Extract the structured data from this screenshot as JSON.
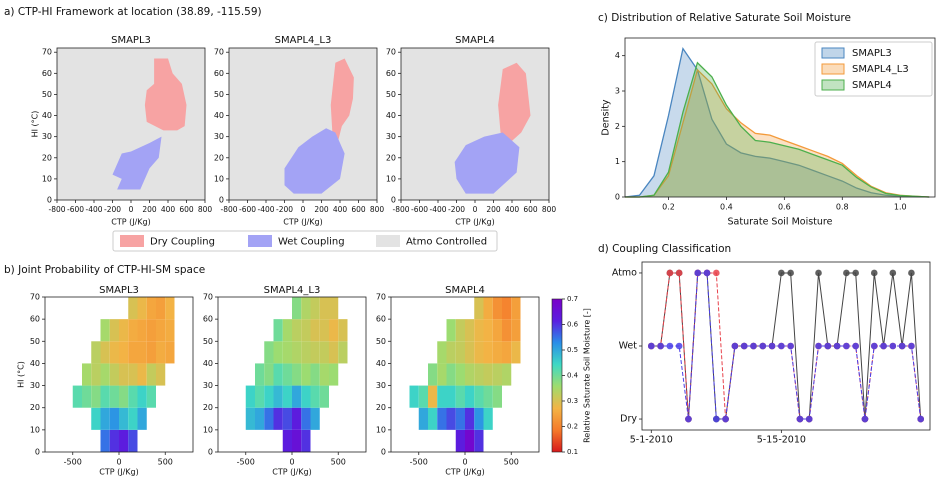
{
  "chart_data": [
    {
      "type": "region",
      "title": "a) CTP-HI Framework at location (38.89, -115.59)",
      "subplot_titles": [
        "SMAPL3",
        "SMAPL4_L3",
        "SMAPL4"
      ],
      "xlabel": "CTP (J/Kg)",
      "ylabel": "HI (°C)",
      "xlim": [
        -800,
        800
      ],
      "xticks": [
        -800,
        -600,
        -400,
        -200,
        0,
        200,
        400,
        600,
        800
      ],
      "ylim": [
        0,
        72
      ],
      "yticks": [
        0,
        10,
        20,
        30,
        40,
        50,
        60,
        70
      ],
      "background": {
        "name": "Atmo Controlled",
        "color": "#e3e3e3"
      },
      "series": [
        {
          "name": "Dry Coupling",
          "color": "#f7a3a3",
          "regions": [
            {
              "x": [
                250,
                400,
                450,
                550,
                600,
                580,
                500,
                350,
                170,
                150,
                170,
                250
              ],
              "values": [
                67,
                67,
                60,
                55,
                45,
                35,
                33,
                33,
                37,
                45,
                52,
                55
              ]
            },
            {
              "x": [
                300,
                350,
                450,
                550,
                540,
                500,
                420,
                380,
                320
              ],
              "values": [
                45,
                65,
                67,
                58,
                48,
                40,
                35,
                28,
                30
              ]
            },
            {
              "x": [
                250,
                300,
                450,
                550,
                600,
                500,
                400,
                280
              ],
              "values": [
                45,
                62,
                65,
                60,
                40,
                32,
                28,
                30
              ]
            }
          ]
        },
        {
          "name": "Wet Coupling",
          "color": "#a3a3f5",
          "regions": [
            {
              "x": [
                -150,
                -100,
                -200,
                -100,
                0,
                200,
                330,
                300,
                200,
                100,
                0
              ],
              "values": [
                5,
                10,
                12,
                22,
                23,
                27,
                30,
                20,
                15,
                5,
                5
              ]
            },
            {
              "x": [
                -200,
                -100,
                200,
                400,
                450,
                350,
                250,
                100,
                -50,
                -200
              ],
              "values": [
                7,
                3,
                3,
                10,
                22,
                32,
                34,
                30,
                25,
                15
              ]
            },
            {
              "x": [
                -200,
                -100,
                200,
                450,
                480,
                300,
                100,
                -100,
                -220
              ],
              "values": [
                10,
                3,
                3,
                13,
                25,
                32,
                30,
                26,
                18
              ]
            }
          ]
        }
      ]
    },
    {
      "type": "heatmap",
      "title": "b) Joint Probability of CTP-HI-SM space",
      "subplot_titles": [
        "SMAPL3",
        "SMAPL4_L3",
        "SMAPL4"
      ],
      "xlabel": "CTP (J/Kg)",
      "ylabel": "HI (°C)",
      "xlim": [
        -800,
        800
      ],
      "xticks": [
        -500,
        0,
        500
      ],
      "ylim": [
        0,
        70
      ],
      "yticks": [
        0,
        10,
        20,
        30,
        40,
        50,
        60,
        70
      ],
      "xbins": [
        -700,
        -600,
        -500,
        -400,
        -300,
        -200,
        -100,
        0,
        100,
        200,
        300,
        400,
        500,
        600,
        700
      ],
      "ybins": [
        0,
        10,
        20,
        30,
        40,
        50,
        60,
        70
      ],
      "colormap": [
        "#d7191c",
        "#f57a2a",
        "#f3b445",
        "#9fdc6e",
        "#3fd9c4",
        "#2a8ee8",
        "#5a1ee0",
        "#7a00c8"
      ],
      "clim": [
        0.1,
        0.7
      ],
      "cticks": [
        0.1,
        0.2,
        0.3,
        0.4,
        0.5,
        0.6,
        0.7
      ],
      "colorbar_label": "Relative Saturate Soil Moisture [-]",
      "subplots": [
        {
          "values": [
            [
              null,
              null,
              null,
              null,
              null,
              0.55,
              0.6,
              0.62,
              0.58,
              null,
              null,
              null,
              null,
              null
            ],
            [
              null,
              null,
              null,
              null,
              0.45,
              0.5,
              0.52,
              0.48,
              0.45,
              0.5,
              null,
              null,
              null,
              null
            ],
            [
              null,
              null,
              0.42,
              0.4,
              0.38,
              0.42,
              0.4,
              0.38,
              0.42,
              0.45,
              0.42,
              null,
              null,
              null
            ],
            [
              null,
              null,
              null,
              0.35,
              0.33,
              0.35,
              0.32,
              0.3,
              0.3,
              0.28,
              0.32,
              0.3,
              null,
              null
            ],
            [
              null,
              null,
              null,
              null,
              0.33,
              0.3,
              0.28,
              0.27,
              0.25,
              0.25,
              0.24,
              0.26,
              0.25,
              null
            ],
            [
              null,
              null,
              null,
              null,
              null,
              0.35,
              0.3,
              0.28,
              0.26,
              0.25,
              0.24,
              0.25,
              0.26,
              null
            ],
            [
              null,
              null,
              null,
              null,
              null,
              null,
              null,
              null,
              0.3,
              0.28,
              0.25,
              0.24,
              0.27,
              null
            ]
          ]
        },
        {
          "values": [
            [
              null,
              null,
              null,
              null,
              null,
              null,
              0.62,
              0.65,
              0.6,
              null,
              null,
              null,
              null,
              null
            ],
            [
              null,
              null,
              0.48,
              0.5,
              0.55,
              0.6,
              0.58,
              0.62,
              0.55,
              0.5,
              null,
              null,
              null,
              null
            ],
            [
              null,
              null,
              0.45,
              0.42,
              0.45,
              0.48,
              0.45,
              0.5,
              0.45,
              0.42,
              0.4,
              null,
              null,
              null
            ],
            [
              null,
              null,
              null,
              0.4,
              0.38,
              0.42,
              0.4,
              0.38,
              0.36,
              0.38,
              0.35,
              0.36,
              null,
              null
            ],
            [
              null,
              null,
              null,
              null,
              0.38,
              0.36,
              0.35,
              0.34,
              0.33,
              0.32,
              0.32,
              0.3,
              0.33,
              null
            ],
            [
              null,
              null,
              null,
              null,
              null,
              0.4,
              0.35,
              0.33,
              0.32,
              0.3,
              0.3,
              0.28,
              0.3,
              null
            ],
            [
              null,
              null,
              null,
              null,
              null,
              null,
              null,
              0.38,
              0.34,
              0.32,
              0.3,
              0.3,
              null,
              null
            ]
          ]
        },
        {
          "values": [
            [
              null,
              null,
              null,
              null,
              null,
              null,
              0.62,
              0.68,
              0.6,
              null,
              null,
              null,
              null,
              null
            ],
            [
              null,
              null,
              0.5,
              0.45,
              0.55,
              0.58,
              0.55,
              0.6,
              0.52,
              0.45,
              null,
              null,
              null,
              null
            ],
            [
              null,
              0.45,
              0.42,
              0.28,
              0.45,
              0.45,
              0.42,
              0.45,
              0.42,
              0.4,
              0.38,
              null,
              null,
              null
            ],
            [
              null,
              null,
              null,
              0.38,
              0.35,
              0.38,
              0.36,
              0.34,
              0.33,
              0.32,
              0.33,
              0.34,
              null,
              null
            ],
            [
              null,
              null,
              null,
              null,
              0.35,
              0.33,
              0.32,
              0.3,
              0.28,
              0.27,
              0.26,
              0.25,
              0.28,
              null
            ],
            [
              null,
              null,
              null,
              null,
              null,
              0.36,
              0.32,
              0.3,
              0.28,
              0.27,
              0.25,
              0.22,
              0.24,
              null
            ],
            [
              null,
              null,
              null,
              null,
              null,
              null,
              null,
              null,
              0.3,
              0.26,
              0.22,
              0.2,
              0.24,
              null
            ]
          ]
        }
      ]
    },
    {
      "type": "density",
      "title": "c) Distribution of Relative Saturate Soil Moisture",
      "xlabel": "Saturate Soil Moisture",
      "ylabel": "Density",
      "xlim": [
        0.05,
        1.12
      ],
      "xticks": [
        0.2,
        0.4,
        0.6,
        0.8,
        {
          "value": 1,
          "label": "1.0"
        }
      ],
      "ylim": [
        0,
        4.5
      ],
      "yticks": [
        0,
        1,
        2,
        3,
        4
      ],
      "x": [
        0.05,
        0.1,
        0.15,
        0.2,
        0.25,
        0.3,
        0.35,
        0.4,
        0.45,
        0.5,
        0.55,
        0.6,
        0.65,
        0.7,
        0.75,
        0.8,
        0.85,
        0.9,
        0.95,
        1.0,
        1.05,
        1.1
      ],
      "series": [
        {
          "name": "SMAPL3",
          "color": "#4a86c0",
          "values": [
            0,
            0.05,
            0.6,
            2.3,
            4.2,
            3.6,
            2.2,
            1.5,
            1.25,
            1.15,
            1.1,
            1.0,
            0.9,
            0.75,
            0.6,
            0.45,
            0.25,
            0.12,
            0.05,
            0.02,
            0.01,
            0
          ]
        },
        {
          "name": "SMAPL4_L3",
          "color": "#f39a3a",
          "values": [
            0,
            0,
            0.05,
            0.6,
            2.1,
            3.6,
            3.2,
            2.5,
            2.1,
            1.8,
            1.75,
            1.6,
            1.45,
            1.3,
            1.15,
            0.95,
            0.6,
            0.3,
            0.12,
            0.05,
            0.02,
            0
          ]
        },
        {
          "name": "SMAPL4",
          "color": "#4caf4c",
          "values": [
            0,
            0,
            0.05,
            0.7,
            2.4,
            3.8,
            3.4,
            2.6,
            2.0,
            1.6,
            1.55,
            1.45,
            1.35,
            1.2,
            1.05,
            0.9,
            0.55,
            0.28,
            0.1,
            0.04,
            0.02,
            0
          ]
        }
      ]
    },
    {
      "type": "line",
      "title": "d) Coupling Classification",
      "xlim": [
        -1,
        30
      ],
      "xticks": [
        {
          "value": 0,
          "label": "5-1-2010"
        },
        {
          "value": 14,
          "label": "5-15-2010"
        }
      ],
      "ylim": [
        -0.15,
        2.15
      ],
      "yticks": [
        {
          "value": 0,
          "label": "Dry"
        },
        {
          "value": 1,
          "label": "Wet"
        },
        {
          "value": 2,
          "label": "Atmo"
        }
      ],
      "x": [
        0,
        1,
        2,
        3,
        4,
        5,
        6,
        7,
        8,
        9,
        10,
        11,
        12,
        13,
        14,
        15,
        16,
        17,
        18,
        19,
        20,
        21,
        22,
        23,
        24,
        25,
        26,
        27,
        28,
        29
      ],
      "series": [
        {
          "color": "#444444",
          "linestyle": "solid",
          "values": [
            1,
            1,
            2,
            2,
            0,
            2,
            2,
            0,
            0,
            1,
            1,
            1,
            1,
            1,
            2,
            2,
            0,
            0,
            2,
            1,
            1,
            2,
            2,
            0,
            2,
            1,
            2,
            1,
            2,
            0
          ]
        },
        {
          "color": "#e8414a",
          "linestyle": "dashed",
          "values": [
            1,
            1,
            2,
            2,
            0,
            2,
            2,
            2,
            0,
            1,
            1,
            1,
            1,
            1,
            1,
            1,
            0,
            0,
            1,
            1,
            1,
            1,
            1,
            0,
            1,
            1,
            1,
            1,
            1,
            0
          ]
        },
        {
          "color": "#4a3ee8",
          "linestyle": "dashed",
          "values": [
            1,
            1,
            1,
            1,
            0,
            2,
            2,
            0,
            0,
            1,
            1,
            1,
            1,
            1,
            1,
            1,
            0,
            0,
            1,
            1,
            1,
            1,
            1,
            0,
            1,
            1,
            1,
            1,
            1,
            0
          ]
        }
      ]
    }
  ]
}
